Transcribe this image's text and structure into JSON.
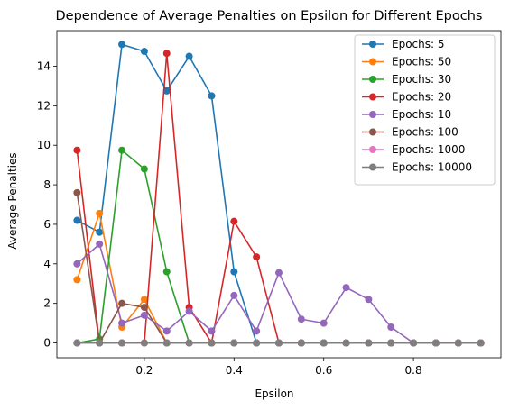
{
  "chart_data": {
    "type": "line",
    "title": "Dependence of Average Penalties on Epsilon for Different Epochs",
    "xlabel": "Epsilon",
    "ylabel": "Average Penalties",
    "xlim": [
      0.005,
      0.995
    ],
    "ylim": [
      -0.75,
      15.8
    ],
    "xticks": [
      0.2,
      0.4,
      0.6,
      0.8
    ],
    "xtick_labels": [
      "0.2",
      "0.4",
      "0.6",
      "0.8"
    ],
    "yticks": [
      0,
      2,
      4,
      6,
      8,
      10,
      12,
      14
    ],
    "ytick_labels": [
      "0",
      "2",
      "4",
      "6",
      "8",
      "10",
      "12",
      "14"
    ],
    "grid": false,
    "legend_position": "top-right",
    "x": [
      0.05,
      0.1,
      0.15,
      0.2,
      0.25,
      0.3,
      0.35,
      0.4,
      0.45,
      0.5,
      0.55,
      0.6,
      0.65,
      0.7,
      0.75,
      0.8,
      0.85,
      0.9,
      0.95
    ],
    "series": [
      {
        "name": "Epochs: 5",
        "color": "#1f77b4",
        "values": [
          6.2,
          5.6,
          15.1,
          14.75,
          12.75,
          14.5,
          12.5,
          3.6,
          0,
          0,
          0,
          0,
          0,
          0,
          0,
          0,
          0,
          0,
          0
        ]
      },
      {
        "name": "Epochs: 50",
        "color": "#ff7f0e",
        "values": [
          3.2,
          6.55,
          0.8,
          2.2,
          0,
          0,
          0,
          0,
          0,
          0,
          0,
          0,
          0,
          0,
          0,
          0,
          0,
          0,
          0
        ]
      },
      {
        "name": "Epochs: 30",
        "color": "#2ca02c",
        "values": [
          0,
          0.2,
          9.75,
          8.8,
          3.6,
          0,
          0,
          0,
          0,
          0,
          0,
          0,
          0,
          0,
          0,
          0,
          0,
          0,
          0
        ]
      },
      {
        "name": "Epochs: 20",
        "color": "#d62728",
        "values": [
          9.75,
          0,
          0,
          0,
          14.65,
          1.8,
          0,
          6.15,
          4.35,
          0,
          0,
          0,
          0,
          0,
          0,
          0,
          0,
          0,
          0
        ]
      },
      {
        "name": "Epochs: 10",
        "color": "#9467bd",
        "values": [
          4.0,
          5.0,
          1.0,
          1.4,
          0.6,
          1.6,
          0.6,
          2.4,
          0.6,
          3.55,
          1.2,
          1.0,
          2.8,
          2.2,
          0.8,
          0,
          0,
          0,
          0
        ]
      },
      {
        "name": "Epochs: 100",
        "color": "#8c564b",
        "values": [
          7.6,
          0,
          2.0,
          1.8,
          0,
          0,
          0,
          0,
          0,
          0,
          0,
          0,
          0,
          0,
          0,
          0,
          0,
          0,
          0
        ]
      },
      {
        "name": "Epochs: 1000",
        "color": "#e377c2",
        "values": [
          0,
          0,
          0,
          0,
          0,
          0,
          0,
          0,
          0,
          0,
          0,
          0,
          0,
          0,
          0,
          0,
          0,
          0,
          0
        ]
      },
      {
        "name": "Epochs: 10000",
        "color": "#7f7f7f",
        "values": [
          0,
          0,
          0,
          0,
          0,
          0,
          0,
          0,
          0,
          0,
          0,
          0,
          0,
          0,
          0,
          0,
          0,
          0,
          0
        ]
      }
    ]
  }
}
